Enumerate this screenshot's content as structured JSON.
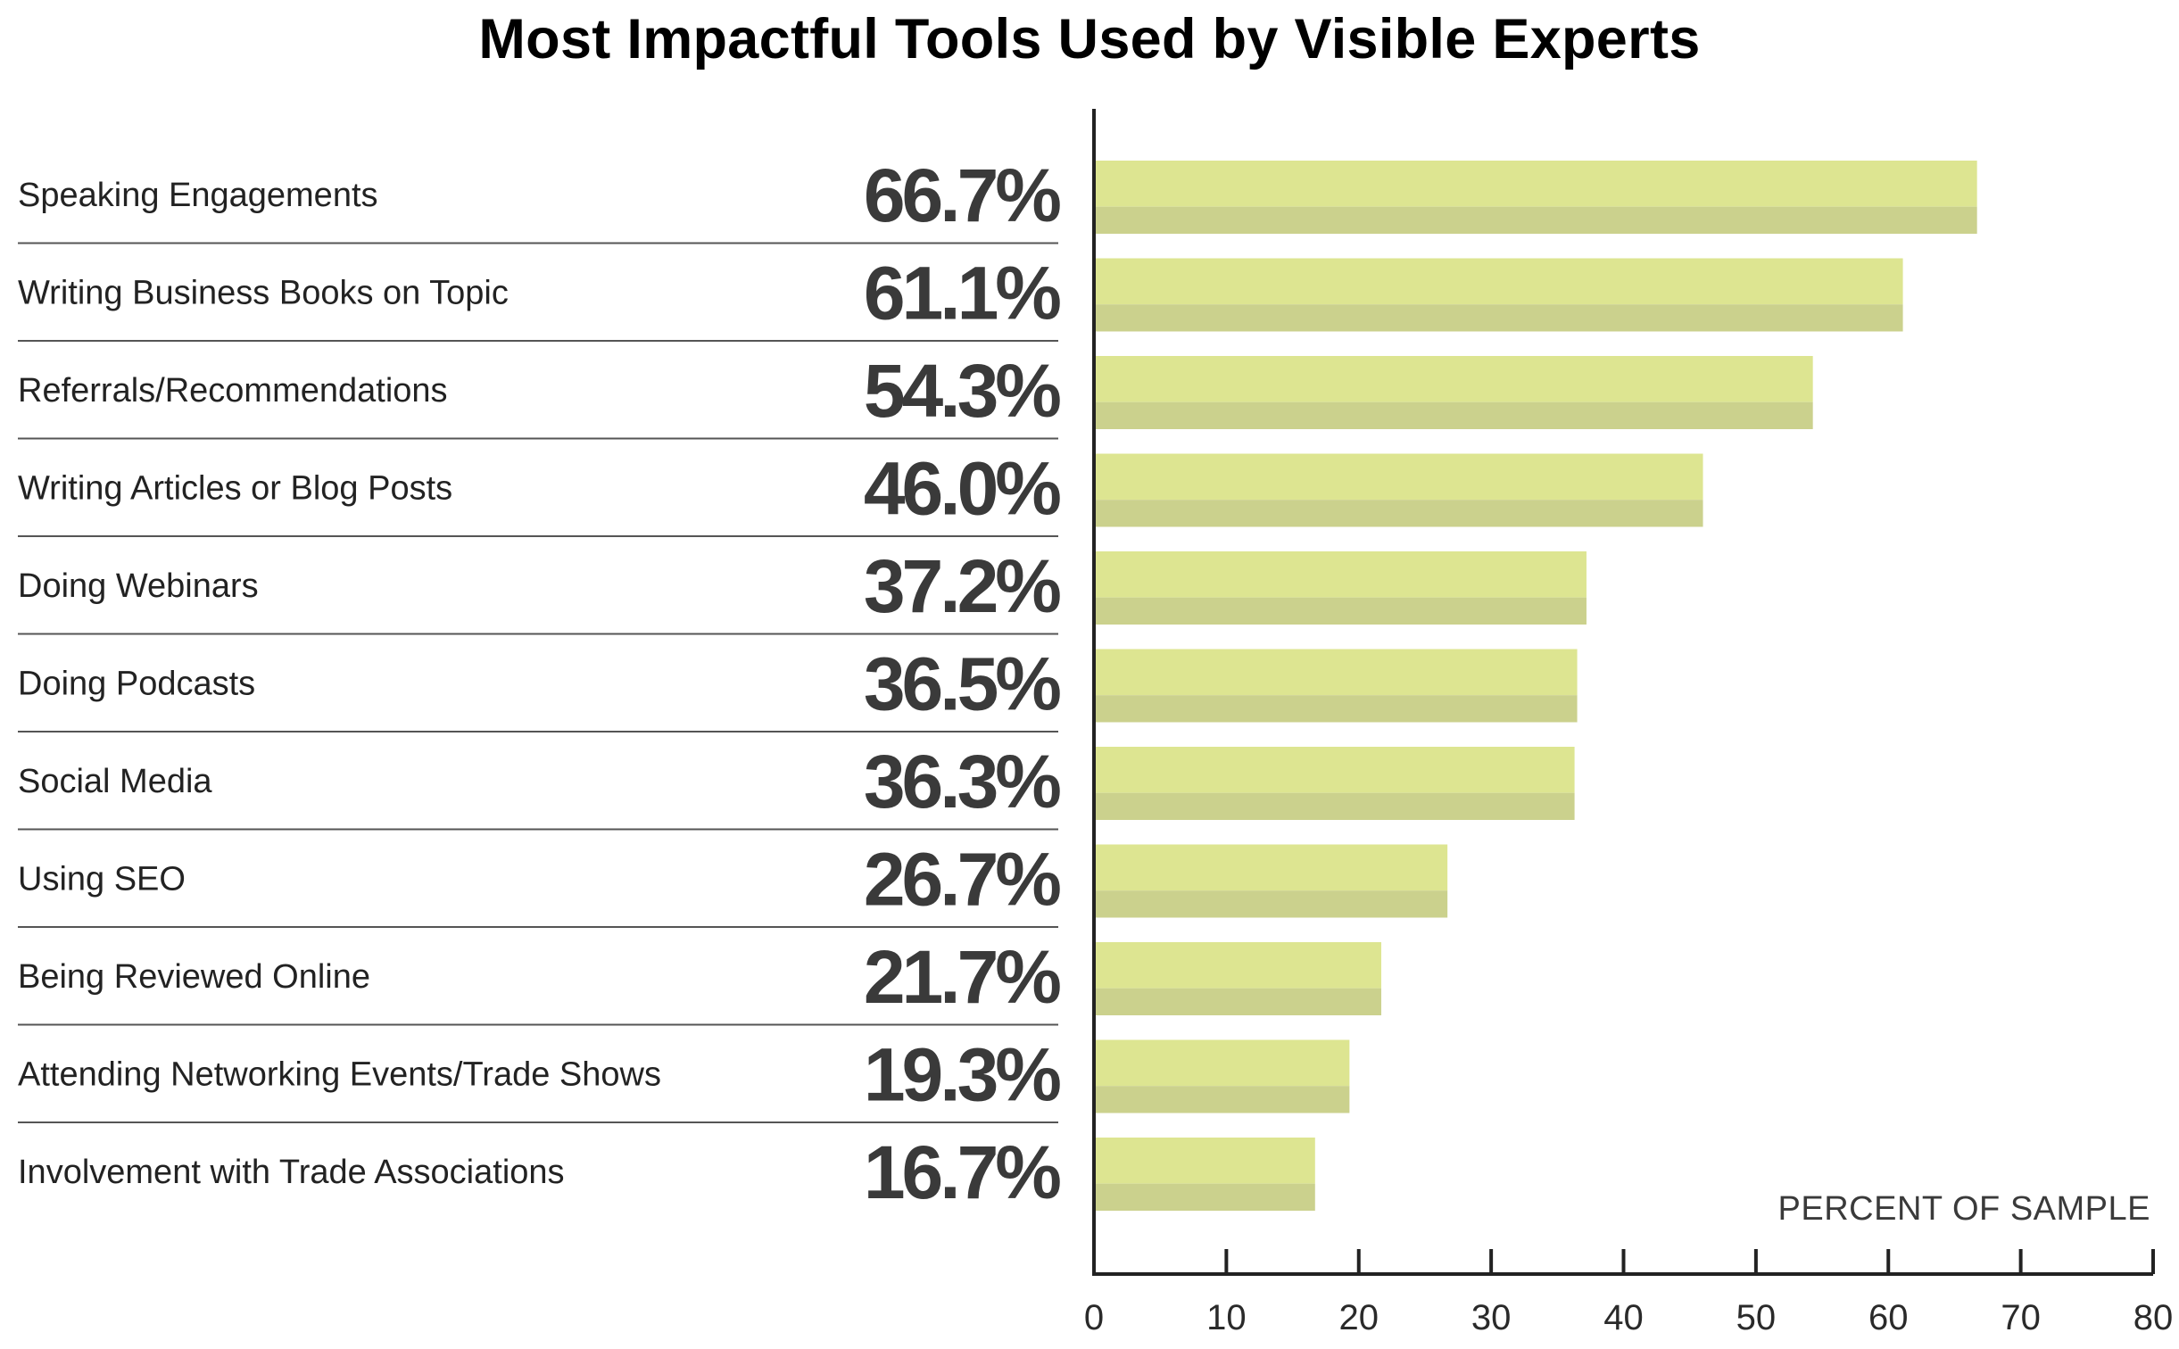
{
  "chart_data": {
    "type": "bar",
    "orientation": "horizontal",
    "title": "Most Impactful Tools Used by Visible Experts",
    "categories": [
      "Speaking Engagements",
      "Writing Business Books on Topic",
      "Referrals/Recommendations",
      "Writing Articles or Blog Posts",
      "Doing Webinars",
      "Doing Podcasts",
      "Social Media",
      "Using SEO",
      "Being Reviewed Online",
      "Attending Networking Events/Trade Shows",
      "Involvement with Trade Associations"
    ],
    "values": [
      66.7,
      61.1,
      54.3,
      46.0,
      37.2,
      36.5,
      36.3,
      26.7,
      21.7,
      19.3,
      16.7
    ],
    "value_labels": [
      "66.7%",
      "61.1%",
      "54.3%",
      "46.0%",
      "37.2%",
      "36.5%",
      "36.3%",
      "26.7%",
      "21.7%",
      "19.3%",
      "16.7%"
    ],
    "xlabel": "PERCENT OF SAMPLE",
    "ylabel": "",
    "xlim": [
      0,
      80
    ],
    "xticks": [
      0,
      10,
      20,
      30,
      40,
      50,
      60,
      70,
      80
    ],
    "grid": false,
    "legend": "none",
    "colors": {
      "bar_top": "#dde591",
      "bar_bottom": "#cbd18d",
      "divider": "#555555",
      "axis": "#222222"
    }
  }
}
